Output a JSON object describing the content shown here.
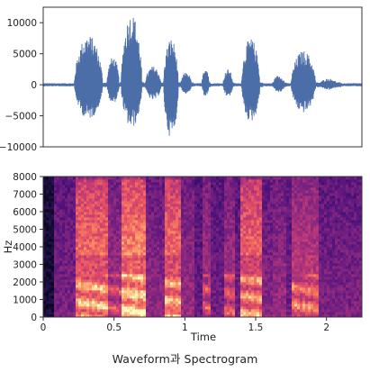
{
  "caption": "Waveform과 Spectrogram",
  "chart_data": [
    {
      "type": "line",
      "series_color": "#4c6ea8",
      "ylim": [
        -10000,
        12500
      ],
      "yticks": [
        "10000",
        "5000",
        "0",
        "−5000",
        "−10000"
      ],
      "ytick_values": [
        10000,
        5000,
        0,
        -5000,
        -10000
      ],
      "xlim": [
        0,
        2.25
      ],
      "bursts": [
        {
          "start": 0.22,
          "end": 0.45,
          "pos": 8000,
          "neg": -5500
        },
        {
          "start": 0.45,
          "end": 0.55,
          "pos": 4500,
          "neg": -3000
        },
        {
          "start": 0.55,
          "end": 0.72,
          "pos": 11500,
          "neg": -7000
        },
        {
          "start": 0.72,
          "end": 0.85,
          "pos": 3000,
          "neg": -2500
        },
        {
          "start": 0.85,
          "end": 0.97,
          "pos": 7500,
          "neg": -8500
        },
        {
          "start": 0.97,
          "end": 1.06,
          "pos": 2000,
          "neg": -1500
        },
        {
          "start": 1.12,
          "end": 1.18,
          "pos": 3000,
          "neg": -2000
        },
        {
          "start": 1.27,
          "end": 1.35,
          "pos": 2500,
          "neg": -2000
        },
        {
          "start": 1.4,
          "end": 1.55,
          "pos": 7500,
          "neg": -6000
        },
        {
          "start": 1.62,
          "end": 1.72,
          "pos": 1500,
          "neg": -1200
        },
        {
          "start": 1.75,
          "end": 1.95,
          "pos": 5500,
          "neg": -4500
        },
        {
          "start": 1.95,
          "end": 2.1,
          "pos": 1000,
          "neg": -800
        }
      ]
    },
    {
      "type": "heatmap",
      "xlabel": "Time",
      "ylabel": "Hz",
      "xlim": [
        0,
        2.25
      ],
      "ylim": [
        0,
        8000
      ],
      "xticks": [
        "0",
        "0.5",
        "1",
        "1.5",
        "2"
      ],
      "xtick_values": [
        0,
        0.5,
        1,
        1.5,
        2
      ],
      "yticks": [
        "0",
        "1000",
        "2000",
        "3000",
        "4000",
        "5000",
        "6000",
        "7000",
        "8000"
      ],
      "ytick_values": [
        0,
        1000,
        2000,
        3000,
        4000,
        5000,
        6000,
        7000,
        8000
      ],
      "colormap": "magma",
      "energy_profile": [
        {
          "start": 0.0,
          "end": 0.08,
          "level": 0.15
        },
        {
          "start": 0.08,
          "end": 0.22,
          "level": 0.35
        },
        {
          "start": 0.22,
          "end": 0.45,
          "level": 0.9
        },
        {
          "start": 0.45,
          "end": 0.55,
          "level": 0.55
        },
        {
          "start": 0.55,
          "end": 0.72,
          "level": 1.0
        },
        {
          "start": 0.72,
          "end": 0.85,
          "level": 0.45
        },
        {
          "start": 0.85,
          "end": 0.97,
          "level": 0.9
        },
        {
          "start": 0.97,
          "end": 1.06,
          "level": 0.5
        },
        {
          "start": 1.06,
          "end": 1.12,
          "level": 0.25
        },
        {
          "start": 1.12,
          "end": 1.18,
          "level": 0.6
        },
        {
          "start": 1.18,
          "end": 1.27,
          "level": 0.3
        },
        {
          "start": 1.27,
          "end": 1.35,
          "level": 0.6
        },
        {
          "start": 1.35,
          "end": 1.4,
          "level": 0.3
        },
        {
          "start": 1.4,
          "end": 1.55,
          "level": 0.85
        },
        {
          "start": 1.55,
          "end": 1.62,
          "level": 0.4
        },
        {
          "start": 1.62,
          "end": 1.72,
          "level": 0.5
        },
        {
          "start": 1.72,
          "end": 1.75,
          "level": 0.3
        },
        {
          "start": 1.75,
          "end": 1.95,
          "level": 0.75
        },
        {
          "start": 1.95,
          "end": 2.25,
          "level": 0.35
        }
      ]
    }
  ]
}
